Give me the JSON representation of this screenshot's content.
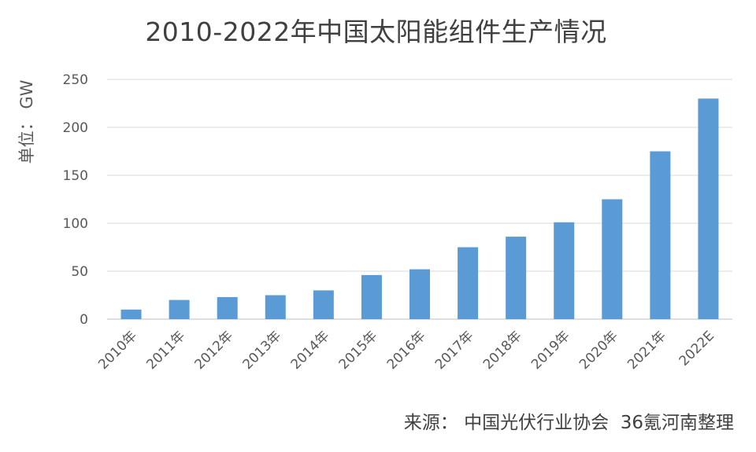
{
  "chart_data": {
    "type": "bar",
    "title": "2010-2022年中国太阳能组件生产情况",
    "ylabel": "单位： GW",
    "xlabel": "",
    "categories": [
      "2010年",
      "2011年",
      "2012年",
      "2013年",
      "2014年",
      "2015年",
      "2016年",
      "2017年",
      "2018年",
      "2019年",
      "2020年",
      "2021年",
      "2022E"
    ],
    "values": [
      10,
      20,
      23,
      25,
      30,
      46,
      52,
      75,
      86,
      101,
      125,
      175,
      230
    ],
    "ylim": [
      0,
      250
    ],
    "yticks": [
      0,
      50,
      100,
      150,
      200,
      250
    ],
    "grid": true,
    "colors": {
      "bar": "#5B9BD5",
      "grid": "#D9D9D9",
      "axis": "#BFBFBF"
    }
  },
  "source_note": "来源： 中国光伏行业协会  36氪河南整理"
}
